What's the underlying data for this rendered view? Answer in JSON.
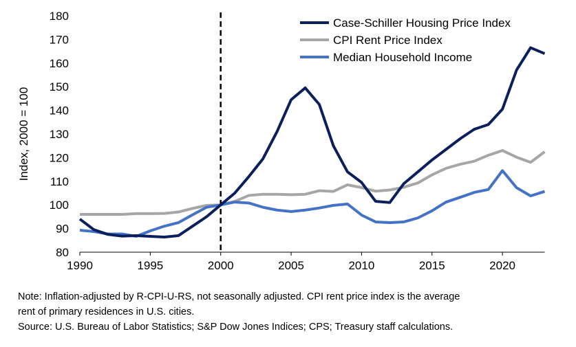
{
  "chart_data": {
    "type": "line",
    "title": "",
    "xlabel": "",
    "ylabel": "Index, 2000 = 100",
    "xlim": [
      1990,
      2023
    ],
    "ylim": [
      80,
      180
    ],
    "xticks": [
      1990,
      1995,
      2000,
      2005,
      2010,
      2015,
      2020
    ],
    "yticks": [
      80,
      90,
      100,
      110,
      120,
      130,
      140,
      150,
      160,
      170,
      180
    ],
    "grid": false,
    "legend_position": "top-right",
    "reference_line": {
      "x": 2000,
      "style": "dashed"
    },
    "x": [
      1990,
      1991,
      1992,
      1993,
      1994,
      1995,
      1996,
      1997,
      1998,
      1999,
      2000,
      2001,
      2002,
      2003,
      2004,
      2005,
      2006,
      2007,
      2008,
      2009,
      2010,
      2011,
      2012,
      2013,
      2014,
      2015,
      2016,
      2017,
      2018,
      2019,
      2020,
      2021,
      2022,
      2023
    ],
    "series": [
      {
        "name": "Case-Schiller Housing Price Index",
        "color": "#0b1f5c",
        "values": [
          94,
          89.5,
          87.5,
          86.8,
          87,
          86.7,
          86.4,
          87,
          91,
          95,
          100,
          105,
          112,
          119.5,
          131,
          144.5,
          149.5,
          142.5,
          125,
          114,
          109.5,
          101.5,
          101,
          109,
          114,
          119,
          123.5,
          128,
          132,
          134,
          140.5,
          157,
          166.5,
          164
        ]
      },
      {
        "name": "CPI Rent Price Index",
        "color": "#a6a6a6",
        "values": [
          96,
          96,
          96,
          96,
          96.3,
          96.3,
          96.4,
          97,
          98.5,
          99.8,
          100,
          101.5,
          104,
          104.5,
          104.5,
          104.3,
          104.5,
          106,
          105.7,
          108.5,
          107.3,
          105.8,
          106.3,
          107.5,
          109.3,
          112.7,
          115.5,
          117.2,
          118.5,
          121,
          123,
          120.2,
          118,
          122.5
        ]
      },
      {
        "name": "Median Household Income",
        "color": "#4472c4",
        "values": [
          89.3,
          88.7,
          87.7,
          87.7,
          86.7,
          89,
          91,
          92.5,
          95.8,
          99,
          100,
          101.2,
          100.8,
          99,
          97.8,
          97.2,
          97.8,
          98.7,
          99.8,
          100.4,
          95.7,
          92.8,
          92.5,
          92.8,
          94.5,
          97.5,
          101.2,
          103.2,
          105.3,
          106.5,
          114.5,
          107.3,
          103.8,
          105.7
        ]
      }
    ]
  },
  "notes": {
    "line1": "Note:  Inflation-adjusted by R-CPI-U-RS, not seasonally adjusted. CPI rent price index is the average",
    "line2": "rent of primary residences in U.S. cities.",
    "line3": "Source: U.S. Bureau of Labor Statistics; S&P Dow Jones Indices; CPS; Treasury staff calculations."
  }
}
